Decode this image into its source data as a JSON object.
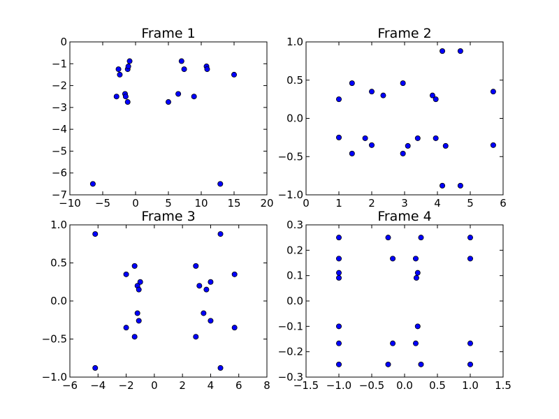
{
  "chart_data": [
    {
      "type": "scatter",
      "title": "Frame 1",
      "xlim": [
        -10,
        20
      ],
      "ylim": [
        -7,
        0
      ],
      "xticks": [
        -10,
        -5,
        0,
        5,
        10,
        15,
        20
      ],
      "yticks": [
        -7,
        -6,
        -5,
        -4,
        -3,
        -2,
        -1,
        0
      ],
      "xtick_labels": [
        "−10",
        "−5",
        "0",
        "5",
        "10",
        "15",
        "20"
      ],
      "ytick_labels": [
        "−7",
        "−6",
        "−5",
        "−4",
        "−3",
        "−2",
        "−1",
        "0"
      ],
      "points": [
        [
          -2.6,
          -1.25
        ],
        [
          -2.4,
          -1.5
        ],
        [
          -1.2,
          -1.25
        ],
        [
          -1.1,
          -1.12
        ],
        [
          -0.9,
          -0.88
        ],
        [
          -1.6,
          -2.38
        ],
        [
          -1.5,
          -2.5
        ],
        [
          -1.2,
          -2.75
        ],
        [
          -2.9,
          -2.5
        ],
        [
          -6.5,
          -6.5
        ],
        [
          7.0,
          -0.88
        ],
        [
          7.4,
          -1.25
        ],
        [
          10.8,
          -1.12
        ],
        [
          10.9,
          -1.25
        ],
        [
          15.0,
          -1.5
        ],
        [
          6.5,
          -2.38
        ],
        [
          8.9,
          -2.5
        ],
        [
          5.0,
          -2.75
        ],
        [
          12.9,
          -6.5
        ]
      ]
    },
    {
      "type": "scatter",
      "title": "Frame 2",
      "xlim": [
        0,
        6
      ],
      "ylim": [
        -1.0,
        1.0
      ],
      "xticks": [
        0,
        1,
        2,
        3,
        4,
        5,
        6
      ],
      "yticks": [
        -1.0,
        -0.5,
        0.0,
        0.5,
        1.0
      ],
      "xtick_labels": [
        "0",
        "1",
        "2",
        "3",
        "4",
        "5",
        "6"
      ],
      "ytick_labels": [
        "−1.0",
        "−0.5",
        "0.0",
        "0.5",
        "1.0"
      ],
      "points": [
        [
          1.0,
          0.25
        ],
        [
          1.4,
          0.46
        ],
        [
          2.0,
          0.35
        ],
        [
          2.35,
          0.3
        ],
        [
          2.95,
          0.46
        ],
        [
          3.85,
          0.3
        ],
        [
          3.95,
          0.25
        ],
        [
          4.15,
          0.88
        ],
        [
          4.7,
          0.88
        ],
        [
          5.7,
          0.35
        ],
        [
          1.0,
          -0.25
        ],
        [
          1.4,
          -0.46
        ],
        [
          1.8,
          -0.26
        ],
        [
          2.0,
          -0.35
        ],
        [
          2.95,
          -0.46
        ],
        [
          3.1,
          -0.36
        ],
        [
          3.4,
          -0.26
        ],
        [
          3.95,
          -0.26
        ],
        [
          4.25,
          -0.36
        ],
        [
          4.15,
          -0.88
        ],
        [
          4.7,
          -0.88
        ],
        [
          5.7,
          -0.35
        ]
      ]
    },
    {
      "type": "scatter",
      "title": "Frame 3",
      "xlim": [
        -6,
        8
      ],
      "ylim": [
        -1.0,
        1.0
      ],
      "xticks": [
        -6,
        -4,
        -2,
        0,
        2,
        4,
        6,
        8
      ],
      "yticks": [
        -1.0,
        -0.5,
        0.0,
        0.5,
        1.0
      ],
      "xtick_labels": [
        "−6",
        "−4",
        "−2",
        "0",
        "2",
        "4",
        "6",
        "8"
      ],
      "ytick_labels": [
        "−1.0",
        "−0.5",
        "0.0",
        "0.5",
        "1.0"
      ],
      "points": [
        [
          -4.2,
          0.88
        ],
        [
          -2.0,
          0.35
        ],
        [
          -1.4,
          0.46
        ],
        [
          -1.0,
          0.25
        ],
        [
          -1.2,
          0.2
        ],
        [
          -1.1,
          0.15
        ],
        [
          -1.2,
          -0.16
        ],
        [
          -1.1,
          -0.26
        ],
        [
          -2.0,
          -0.35
        ],
        [
          -1.4,
          -0.47
        ],
        [
          -4.2,
          -0.88
        ],
        [
          4.7,
          0.88
        ],
        [
          2.95,
          0.46
        ],
        [
          3.2,
          0.2
        ],
        [
          4.0,
          0.25
        ],
        [
          3.7,
          0.15
        ],
        [
          5.7,
          0.35
        ],
        [
          3.5,
          -0.16
        ],
        [
          4.0,
          -0.26
        ],
        [
          2.95,
          -0.47
        ],
        [
          5.7,
          -0.35
        ],
        [
          4.7,
          -0.88
        ]
      ]
    },
    {
      "type": "scatter",
      "title": "Frame 4",
      "xlim": [
        -1.5,
        1.5
      ],
      "ylim": [
        -0.3,
        0.3
      ],
      "xticks": [
        -1.5,
        -1.0,
        -0.5,
        0.0,
        0.5,
        1.0,
        1.5
      ],
      "yticks": [
        -0.3,
        -0.2,
        -0.1,
        0.0,
        0.1,
        0.2,
        0.3
      ],
      "xtick_labels": [
        "−1.5",
        "−1.0",
        "−0.5",
        "0.0",
        "0.5",
        "1.0",
        "1.5"
      ],
      "ytick_labels": [
        "−0.3",
        "−0.2",
        "−0.1",
        "0.0",
        "0.1",
        "0.2",
        "0.3"
      ],
      "points": [
        [
          -1.0,
          0.25
        ],
        [
          -1.0,
          0.167
        ],
        [
          -1.0,
          0.111
        ],
        [
          -1.0,
          0.091
        ],
        [
          -1.0,
          -0.1
        ],
        [
          -1.0,
          -0.167
        ],
        [
          -1.0,
          -0.25
        ],
        [
          -0.25,
          0.25
        ],
        [
          -0.18,
          0.167
        ],
        [
          0.17,
          0.167
        ],
        [
          0.25,
          0.25
        ],
        [
          0.2,
          0.111
        ],
        [
          0.18,
          0.091
        ],
        [
          0.2,
          -0.1
        ],
        [
          -0.18,
          -0.167
        ],
        [
          0.17,
          -0.167
        ],
        [
          -0.25,
          -0.25
        ],
        [
          0.25,
          -0.25
        ],
        [
          1.0,
          0.25
        ],
        [
          1.0,
          0.167
        ],
        [
          1.0,
          -0.167
        ],
        [
          1.0,
          -0.25
        ]
      ]
    }
  ]
}
